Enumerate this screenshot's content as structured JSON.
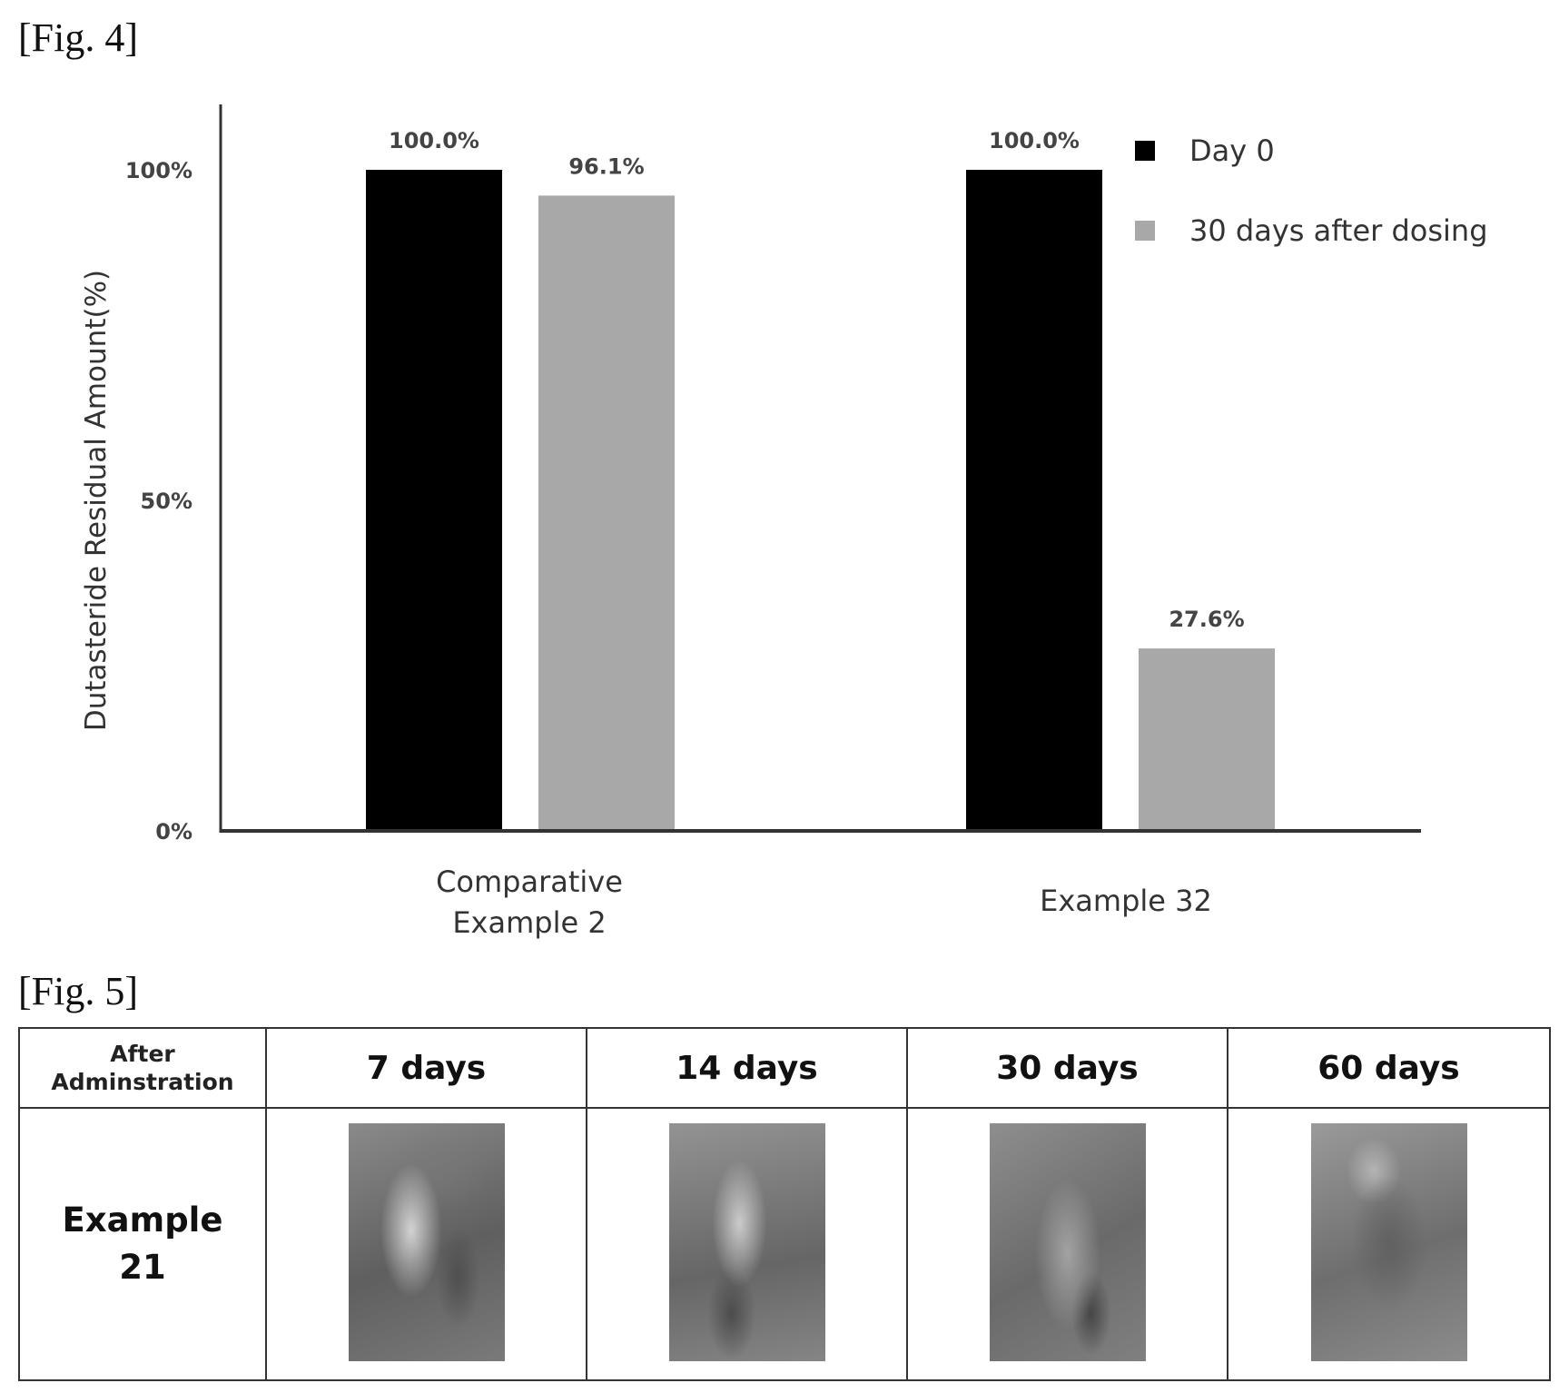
{
  "fig4": {
    "label": "[Fig. 4]",
    "chart_data": {
      "type": "bar",
      "categories": [
        "Comparative Example 2",
        "Example 32"
      ],
      "category_lines": [
        [
          "Comparative",
          "Example  2"
        ],
        [
          "Example  32"
        ]
      ],
      "series": [
        {
          "name": "Day  0",
          "values": [
            100.0,
            100.0
          ],
          "labels": [
            "100.0%",
            "100.0%"
          ],
          "color": "#000000"
        },
        {
          "name": "30  days  after  dosing",
          "values": [
            96.1,
            27.6
          ],
          "labels": [
            "96.1%",
            "27.6%"
          ],
          "color": "#a8a8a8"
        }
      ],
      "ylabel": "Dutasteride  Residual  Amount(%)",
      "yticks": [
        {
          "value": 0,
          "label": "0%"
        },
        {
          "value": 50,
          "label": "50%"
        },
        {
          "value": 100,
          "label": "100%"
        }
      ],
      "ylim": [
        0,
        110
      ],
      "legend_position": "top-right",
      "grid": false
    }
  },
  "fig5": {
    "label": "[Fig. 5]",
    "header": {
      "first_cell_lines": [
        "After",
        "Adminstration"
      ],
      "days": [
        "7 days",
        "14 days",
        "30 days",
        "60 days"
      ]
    },
    "rows": [
      {
        "label_lines": [
          "Example",
          "21"
        ]
      }
    ]
  }
}
